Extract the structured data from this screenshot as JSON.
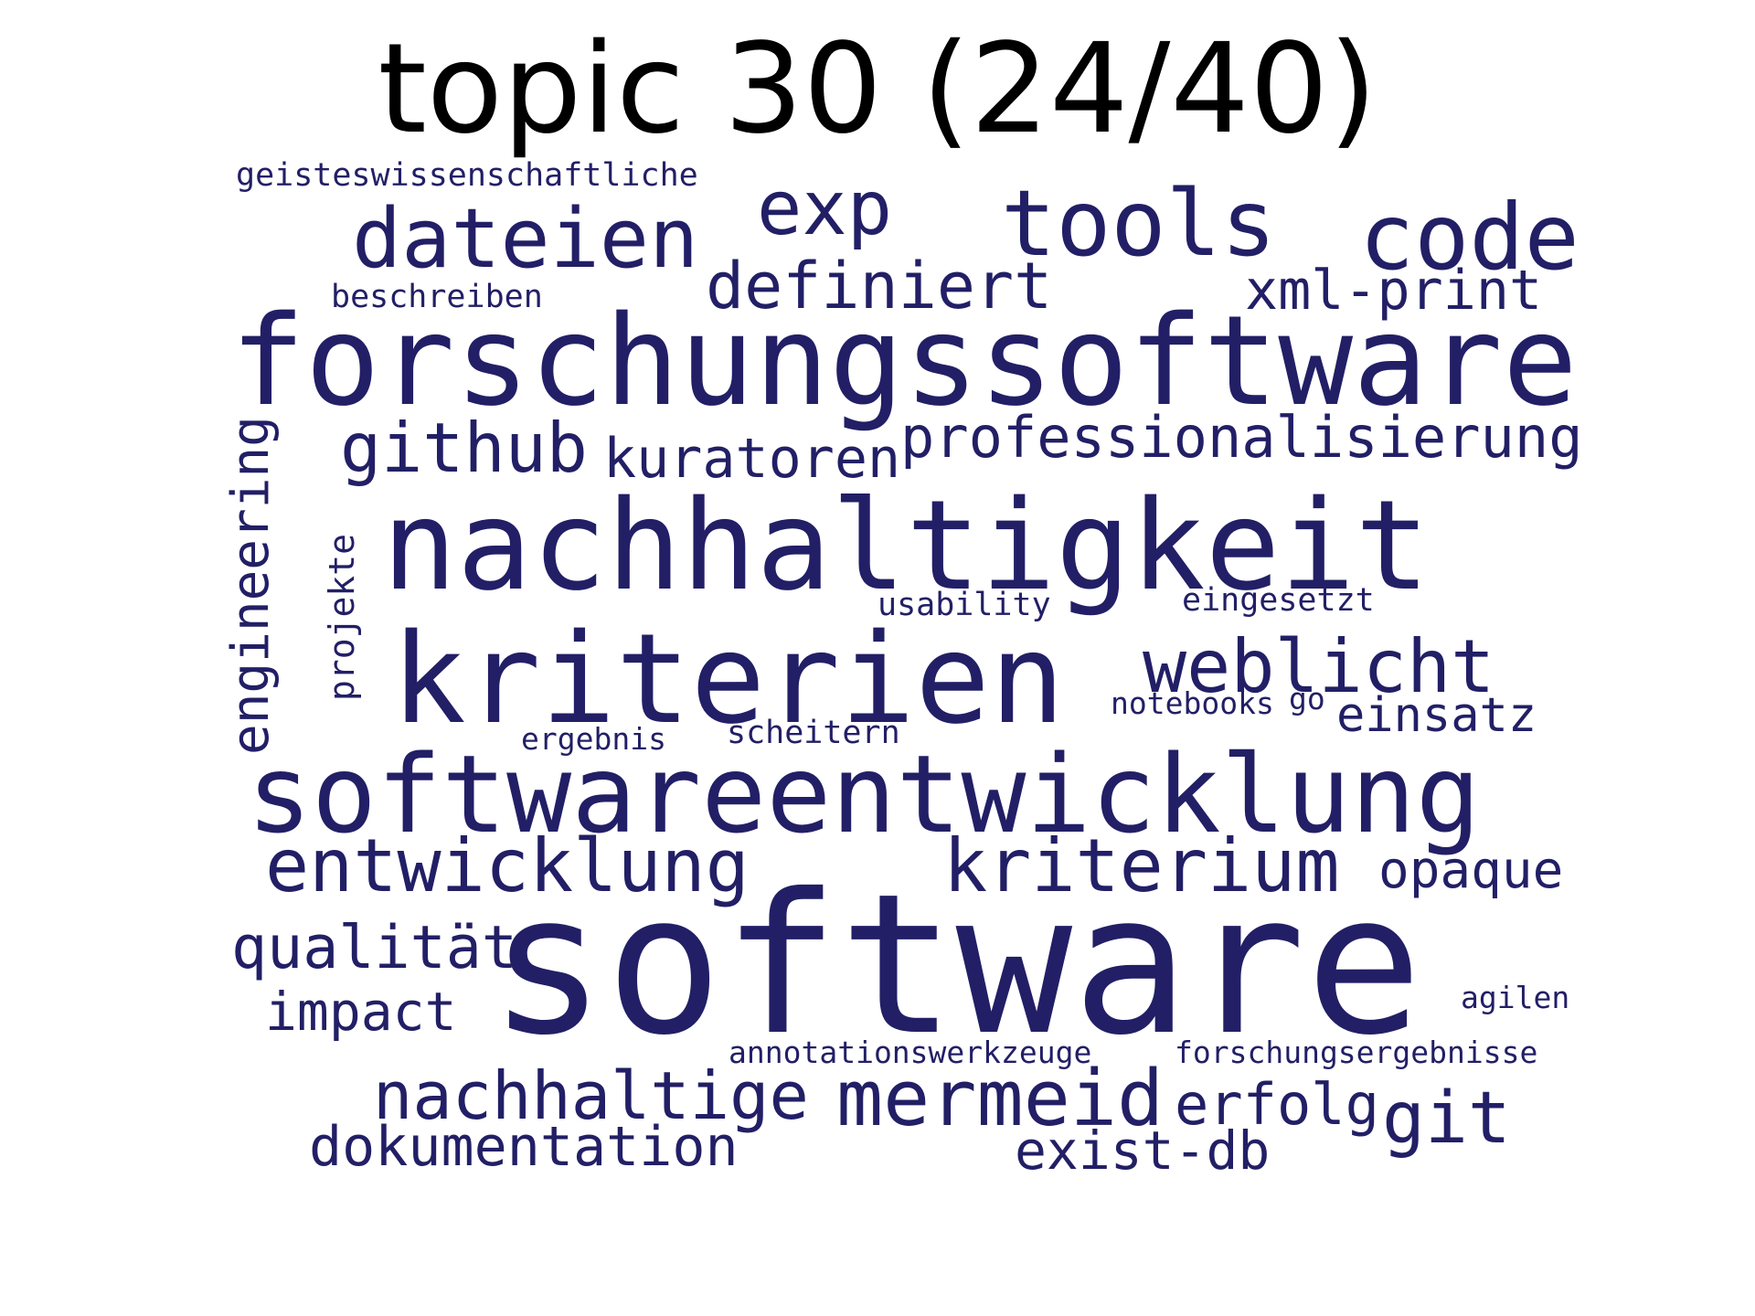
{
  "title": "topic 30 (24/40)",
  "word_color": "#221f66",
  "background_color": "#ffffff",
  "words": [
    "geisteswissenschaftliche",
    "exp",
    "tools",
    "code",
    "dateien",
    "definiert",
    "xml-print",
    "beschreiben",
    "forschungssoftware",
    "github",
    "kuratoren",
    "professionalisierung",
    "engineering",
    "nachhaltigkeit",
    "projekte",
    "usability",
    "eingesetzt",
    "kriterien",
    "weblicht",
    "notebooks",
    "go",
    "einsatz",
    "ergebnis",
    "scheitern",
    "softwareentwicklung",
    "entwicklung",
    "kriterium",
    "opaque",
    "qualität",
    "software",
    "impact",
    "agilen",
    "annotationswerkzeuge",
    "forschungsergebnisse",
    "nachhaltige",
    "mermeid",
    "erfolg",
    "git",
    "dokumentation",
    "exist-db"
  ]
}
